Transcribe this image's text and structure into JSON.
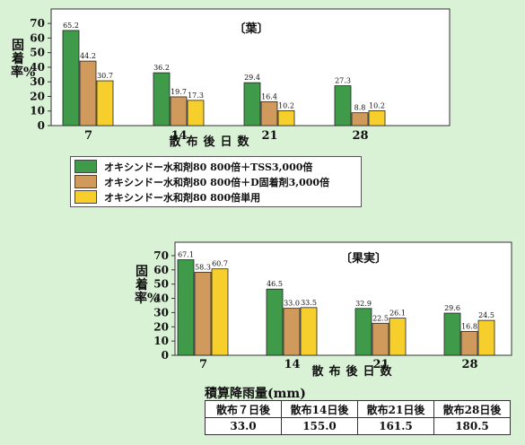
{
  "colors": {
    "green": "#3f9a4a",
    "tan": "#cf9a5c",
    "yellow": "#f7cf2d"
  },
  "chart_data": [
    {
      "type": "bar",
      "title": "〔葉〕",
      "ylabel": "固着率%",
      "xlabel": "散布後日数",
      "categories": [
        "7",
        "14",
        "21",
        "28"
      ],
      "yticks": [
        "0",
        "10",
        "20",
        "30",
        "40",
        "50",
        "60",
        "70"
      ],
      "ylim": [
        0,
        75
      ],
      "series": [
        {
          "name": "オキシンドー水和剤80  800倍＋TSS3,000倍",
          "color": "#3f9a4a",
          "values": [
            65.2,
            36.2,
            29.4,
            27.3
          ],
          "labels": [
            "65.2",
            "36.2",
            "29.4",
            "27.3"
          ]
        },
        {
          "name": "オキシンドー水和剤80  800倍＋D固着剤3,000倍",
          "color": "#cf9a5c",
          "values": [
            44.2,
            19.7,
            16.4,
            8.8
          ],
          "labels": [
            "44.2",
            "19.7",
            "16.4",
            "8.8"
          ]
        },
        {
          "name": "オキシンドー水和剤80  800倍単用",
          "color": "#f7cf2d",
          "values": [
            30.7,
            17.3,
            10.2,
            10.2
          ],
          "labels": [
            "30.7",
            "17.3",
            "10.2",
            "10.2"
          ]
        }
      ]
    },
    {
      "type": "bar",
      "title": "〔果実〕",
      "ylabel": "固着率%",
      "xlabel": "散布後日数",
      "categories": [
        "7",
        "14",
        "21",
        "28"
      ],
      "yticks": [
        "0",
        "10",
        "20",
        "30",
        "40",
        "50",
        "60",
        "70"
      ],
      "ylim": [
        0,
        75
      ],
      "series": [
        {
          "name": "オキシンドー水和剤80  800倍＋TSS3,000倍",
          "color": "#3f9a4a",
          "values": [
            67.1,
            46.5,
            32.9,
            29.6
          ],
          "labels": [
            "67.1",
            "46.5",
            "32.9",
            "29.6"
          ]
        },
        {
          "name": "オキシンドー水和剤80  800倍＋D固着剤3,000倍",
          "color": "#cf9a5c",
          "values": [
            58.3,
            33.0,
            22.5,
            16.8
          ],
          "labels": [
            "58.3",
            "33.0",
            "22.5",
            "16.8"
          ]
        },
        {
          "name": "オキシンドー水和剤80  800倍単用",
          "color": "#f7cf2d",
          "values": [
            60.7,
            33.5,
            26.1,
            24.5
          ],
          "labels": [
            "60.7",
            "33.5",
            "26.1",
            "24.5"
          ]
        }
      ]
    }
  ],
  "rain": {
    "title": "積算降雨量(mm)",
    "headers": [
      "散布７日後",
      "散布14日後",
      "散布21日後",
      "散布28日後"
    ],
    "values": [
      "33.0",
      "155.0",
      "161.5",
      "180.5"
    ]
  }
}
